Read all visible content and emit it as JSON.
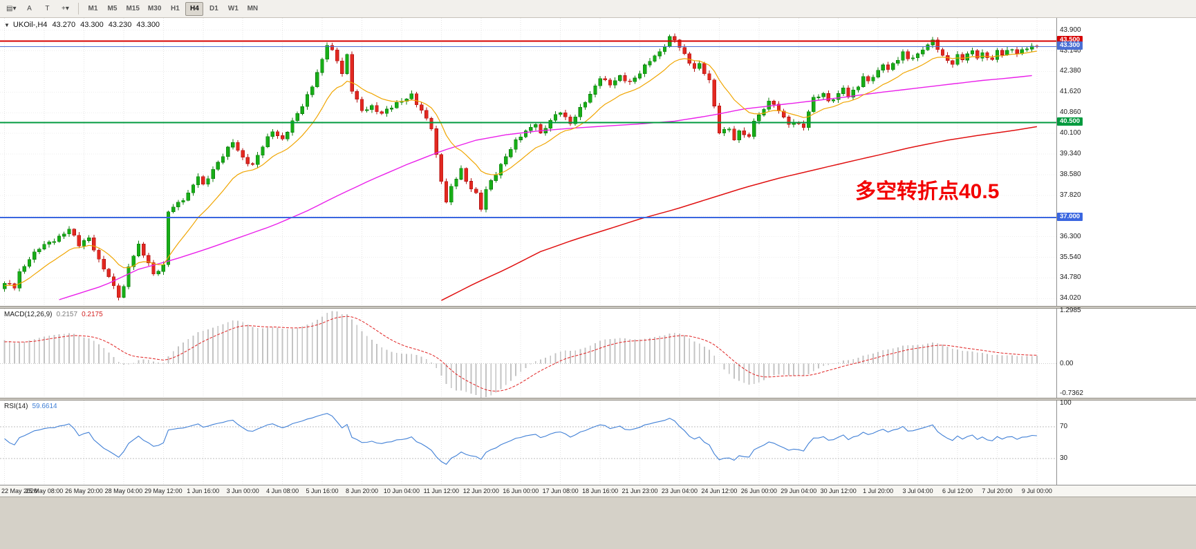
{
  "symbol_header": {
    "collapse": "▼",
    "title": "UKOil-,H4",
    "open": "43.270",
    "high": "43.300",
    "low": "43.230",
    "close": "43.300"
  },
  "toolbar": {
    "tools": [
      {
        "name": "chart-style",
        "glyph": "▤▾"
      },
      {
        "name": "text-tool",
        "glyph": "A"
      },
      {
        "name": "template-tool",
        "glyph": "T"
      },
      {
        "name": "crosshair-tool",
        "glyph": "+▾"
      }
    ],
    "timeframes": [
      {
        "label": "M1",
        "active": false
      },
      {
        "label": "M5",
        "active": false
      },
      {
        "label": "M15",
        "active": false
      },
      {
        "label": "M30",
        "active": false
      },
      {
        "label": "H1",
        "active": false
      },
      {
        "label": "H4",
        "active": true
      },
      {
        "label": "D1",
        "active": false
      },
      {
        "label": "W1",
        "active": false
      },
      {
        "label": "MN",
        "active": false
      }
    ]
  },
  "chart_data": {
    "type": "candlestick",
    "symbol": "UKOil-",
    "timeframe": "H4",
    "bars": 209,
    "price_axis": {
      "labels": [
        "43.900",
        "43.140",
        "42.380",
        "41.620",
        "40.860",
        "40.100",
        "39.340",
        "38.580",
        "37.820",
        "37.060",
        "36.300",
        "35.540",
        "34.780",
        "34.020"
      ],
      "top_value": 44.35,
      "bottom_value": 33.75
    },
    "time_axis_labels": [
      "22 May 2020",
      "25 May 08:00",
      "26 May 20:00",
      "28 May 04:00",
      "29 May 12:00",
      "1 Jun 16:00",
      "3 Jun 00:00",
      "4 Jun 08:00",
      "5 Jun 16:00",
      "8 Jun 20:00",
      "10 Jun 04:00",
      "11 Jun 12:00",
      "12 Jun 20:00",
      "16 Jun 00:00",
      "17 Jun 08:00",
      "18 Jun 16:00",
      "21 Jun 23:00",
      "23 Jun 04:00",
      "24 Jun 12:00",
      "26 Jun 00:00",
      "29 Jun 04:00",
      "30 Jun 12:00",
      "1 Jul 20:00",
      "3 Jul 04:00",
      "6 Jul 12:00",
      "7 Jul 20:00",
      "9 Jul 00:00"
    ],
    "close_path_waypoints": [
      [
        0,
        34.55
      ],
      [
        2,
        34.45
      ],
      [
        3,
        35.0
      ],
      [
        5,
        35.5
      ],
      [
        7,
        35.85
      ],
      [
        9,
        36.1
      ],
      [
        11,
        36.3
      ],
      [
        13,
        36.55
      ],
      [
        15,
        36.0
      ],
      [
        17,
        36.3
      ],
      [
        19,
        35.4
      ],
      [
        21,
        34.8
      ],
      [
        23,
        34.15
      ],
      [
        24,
        34.45
      ],
      [
        25,
        35.2
      ],
      [
        27,
        35.95
      ],
      [
        29,
        35.35
      ],
      [
        30,
        34.95
      ],
      [
        32,
        35.2
      ],
      [
        33,
        37.2
      ],
      [
        35,
        37.55
      ],
      [
        37,
        37.9
      ],
      [
        39,
        38.5
      ],
      [
        40,
        38.15
      ],
      [
        42,
        38.8
      ],
      [
        44,
        39.3
      ],
      [
        46,
        39.75
      ],
      [
        48,
        39.2
      ],
      [
        50,
        38.95
      ],
      [
        52,
        39.6
      ],
      [
        54,
        40.2
      ],
      [
        56,
        39.9
      ],
      [
        58,
        40.5
      ],
      [
        60,
        41.1
      ],
      [
        62,
        41.9
      ],
      [
        64,
        42.8
      ],
      [
        65,
        43.35
      ],
      [
        66,
        43.1
      ],
      [
        67,
        42.8
      ],
      [
        68,
        42.35
      ],
      [
        69,
        43.0
      ],
      [
        70,
        41.7
      ],
      [
        72,
        40.9
      ],
      [
        74,
        41.1
      ],
      [
        76,
        40.85
      ],
      [
        78,
        41.05
      ],
      [
        80,
        41.3
      ],
      [
        82,
        41.55
      ],
      [
        83,
        41.2
      ],
      [
        84,
        40.9
      ],
      [
        86,
        40.3
      ],
      [
        87,
        39.3
      ],
      [
        88,
        38.4
      ],
      [
        89,
        37.6
      ],
      [
        90,
        38.1
      ],
      [
        92,
        38.75
      ],
      [
        93,
        38.35
      ],
      [
        95,
        37.9
      ],
      [
        96,
        37.35
      ],
      [
        97,
        38.0
      ],
      [
        99,
        38.6
      ],
      [
        101,
        39.3
      ],
      [
        103,
        39.8
      ],
      [
        105,
        40.15
      ],
      [
        107,
        40.5
      ],
      [
        108,
        40.1
      ],
      [
        110,
        40.55
      ],
      [
        112,
        40.9
      ],
      [
        114,
        40.5
      ],
      [
        116,
        41.0
      ],
      [
        118,
        41.5
      ],
      [
        120,
        42.2
      ],
      [
        122,
        41.9
      ],
      [
        124,
        42.15
      ],
      [
        126,
        42.0
      ],
      [
        128,
        42.35
      ],
      [
        130,
        42.75
      ],
      [
        132,
        43.1
      ],
      [
        134,
        43.65
      ],
      [
        135,
        43.55
      ],
      [
        137,
        42.95
      ],
      [
        139,
        42.5
      ],
      [
        140,
        42.7
      ],
      [
        142,
        42.0
      ],
      [
        143,
        41.1
      ],
      [
        144,
        40.1
      ],
      [
        146,
        40.35
      ],
      [
        147,
        39.85
      ],
      [
        148,
        40.2
      ],
      [
        150,
        39.9
      ],
      [
        151,
        40.6
      ],
      [
        153,
        41.0
      ],
      [
        154,
        41.35
      ],
      [
        155,
        41.1
      ],
      [
        157,
        40.7
      ],
      [
        158,
        40.4
      ],
      [
        159,
        40.6
      ],
      [
        161,
        40.3
      ],
      [
        162,
        40.9
      ],
      [
        163,
        41.35
      ],
      [
        165,
        41.6
      ],
      [
        166,
        41.3
      ],
      [
        168,
        41.5
      ],
      [
        169,
        41.75
      ],
      [
        170,
        41.45
      ],
      [
        172,
        41.9
      ],
      [
        173,
        42.2
      ],
      [
        174,
        42.0
      ],
      [
        176,
        42.35
      ],
      [
        177,
        42.65
      ],
      [
        178,
        42.5
      ],
      [
        180,
        42.85
      ],
      [
        181,
        43.05
      ],
      [
        182,
        42.8
      ],
      [
        184,
        43.0
      ],
      [
        185,
        43.25
      ],
      [
        187,
        43.5
      ],
      [
        188,
        43.2
      ],
      [
        189,
        42.9
      ],
      [
        191,
        42.7
      ],
      [
        192,
        43.0
      ],
      [
        193,
        42.85
      ],
      [
        195,
        43.1
      ],
      [
        196,
        42.9
      ],
      [
        197,
        43.05
      ],
      [
        199,
        42.85
      ],
      [
        200,
        43.1
      ],
      [
        201,
        43.0
      ],
      [
        203,
        43.2
      ],
      [
        204,
        43.1
      ],
      [
        206,
        43.25
      ],
      [
        208,
        43.3
      ]
    ],
    "horizontal_lines": [
      {
        "value": 43.5,
        "label": "43.500",
        "color": "#d60000",
        "width": 2,
        "current": false
      },
      {
        "value": 43.3,
        "label": "43.300",
        "color": "#4a6fd4",
        "width": 1,
        "current": true
      },
      {
        "value": 40.5,
        "label": "40.500",
        "color": "#009a3e",
        "width": 2,
        "current": false
      },
      {
        "value": 37.0,
        "label": "37.000",
        "color": "#3a66e0",
        "width": 2,
        "current": false
      }
    ],
    "moving_averages": {
      "fast": {
        "style": "ema",
        "period": 13,
        "color": "#f0a500",
        "width": 1.2
      },
      "mid": {
        "color": "#ea1fea",
        "width": 1.4,
        "points": [
          [
            11,
            33.98
          ],
          [
            20,
            34.5
          ],
          [
            27,
            35.1
          ],
          [
            34,
            35.45
          ],
          [
            40,
            35.8
          ],
          [
            47,
            36.25
          ],
          [
            54,
            36.7
          ],
          [
            61,
            37.25
          ],
          [
            67,
            37.8
          ],
          [
            74,
            38.4
          ],
          [
            81,
            38.95
          ],
          [
            88,
            39.45
          ],
          [
            95,
            39.85
          ],
          [
            101,
            40.05
          ],
          [
            108,
            40.2
          ],
          [
            115,
            40.3
          ],
          [
            122,
            40.38
          ],
          [
            128,
            40.45
          ],
          [
            135,
            40.55
          ],
          [
            142,
            40.75
          ],
          [
            149,
            41.0
          ],
          [
            156,
            41.15
          ],
          [
            163,
            41.3
          ],
          [
            170,
            41.45
          ],
          [
            176,
            41.6
          ],
          [
            183,
            41.75
          ],
          [
            190,
            41.9
          ],
          [
            197,
            42.05
          ],
          [
            203,
            42.15
          ],
          [
            208,
            42.25
          ]
        ]
      },
      "slow": {
        "color": "#e01010",
        "width": 1.5,
        "points": [
          [
            88,
            33.95
          ],
          [
            95,
            34.6
          ],
          [
            101,
            35.1
          ],
          [
            108,
            35.75
          ],
          [
            115,
            36.2
          ],
          [
            122,
            36.6
          ],
          [
            128,
            36.95
          ],
          [
            135,
            37.3
          ],
          [
            142,
            37.7
          ],
          [
            149,
            38.1
          ],
          [
            156,
            38.45
          ],
          [
            163,
            38.75
          ],
          [
            170,
            39.05
          ],
          [
            176,
            39.3
          ],
          [
            183,
            39.6
          ],
          [
            190,
            39.85
          ],
          [
            197,
            40.05
          ],
          [
            203,
            40.2
          ],
          [
            208,
            40.35
          ]
        ]
      }
    },
    "macd": {
      "label": "MACD(12,26,9)",
      "value_main": "0.2157",
      "value_signal": "0.2175",
      "axis_labels": [
        "1.2985",
        "0.00",
        "-0.7362"
      ],
      "vmax": 1.35,
      "vmin": -0.84,
      "params": {
        "fast": 12,
        "slow": 26,
        "signal": 9
      }
    },
    "rsi": {
      "label": "RSI(14)",
      "value": "59.6614",
      "axis_labels": [
        "100",
        "70",
        "30"
      ],
      "levels": [
        70,
        30
      ],
      "period": 14,
      "color": "#3f7fd6"
    },
    "annotation": {
      "text": "多空转折点40.5",
      "color": "#f20000"
    }
  }
}
